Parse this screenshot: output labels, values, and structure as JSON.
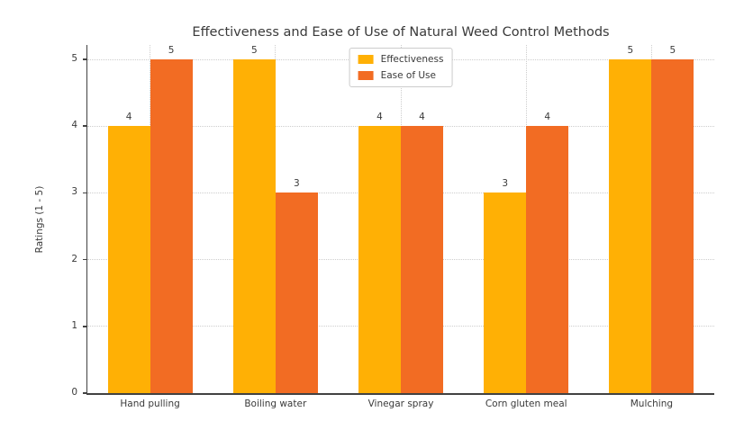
{
  "chart_data": {
    "type": "bar",
    "title": "Effectiveness and Ease of Use of Natural Weed Control Methods",
    "xlabel": "",
    "ylabel": "Ratings (1 - 5)",
    "categories": [
      "Hand pulling",
      "Boiling water",
      "Vinegar spray",
      "Corn gluten meal",
      "Mulching"
    ],
    "series": [
      {
        "name": "Effectiveness",
        "color": "#FFB005",
        "values": [
          4,
          5,
          4,
          3,
          5
        ]
      },
      {
        "name": "Ease of Use",
        "color": "#F26C23",
        "values": [
          5,
          3,
          4,
          4,
          5
        ]
      }
    ],
    "yticks": [
      0,
      1,
      2,
      3,
      4,
      5
    ],
    "ylim": [
      0,
      5.216
    ],
    "grid": true,
    "grid_style": "dotted",
    "bar_labels": true,
    "legend_position": "upper center",
    "colors": {
      "background": "#ffffff",
      "spine": "#424242",
      "grid": "#cdcdcd",
      "text": "#3a3a3a"
    }
  }
}
